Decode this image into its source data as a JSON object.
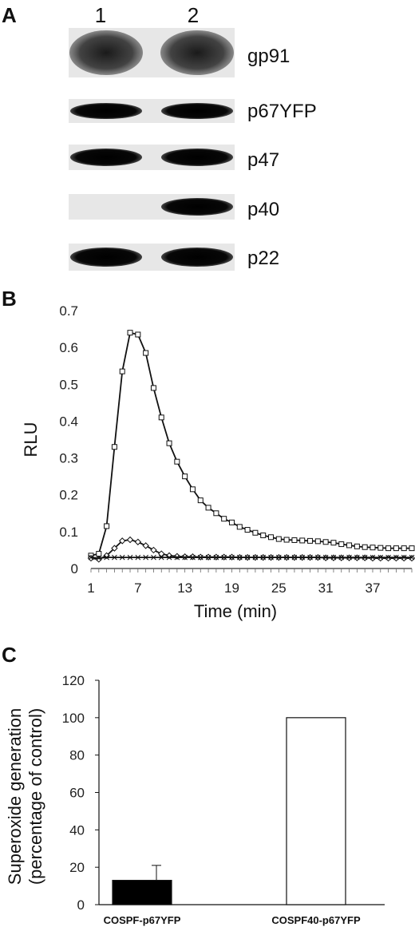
{
  "panels": {
    "a": {
      "letter": "A",
      "lanes": [
        "1",
        "2"
      ],
      "blots": [
        {
          "label": "gp91",
          "lane_intensity": [
            1,
            1
          ],
          "style": "smear"
        },
        {
          "label": "p67YFP",
          "lane_intensity": [
            1,
            1
          ],
          "style": "band"
        },
        {
          "label": "p47",
          "lane_intensity": [
            1,
            1
          ],
          "style": "band"
        },
        {
          "label": "p40",
          "lane_intensity": [
            0,
            1
          ],
          "style": "band"
        },
        {
          "label": "p22",
          "lane_intensity": [
            1,
            1
          ],
          "style": "band"
        }
      ]
    },
    "b": {
      "letter": "B"
    },
    "c": {
      "letter": "C"
    }
  },
  "chart_data": [
    {
      "type": "line",
      "panel": "B",
      "xlabel": "Time (min)",
      "ylabel": "RLU",
      "xlim": [
        1,
        42
      ],
      "ylim": [
        0,
        0.7
      ],
      "x_ticks": [
        "1",
        "7",
        "13",
        "19",
        "25",
        "31",
        "37"
      ],
      "y_ticks": [
        "0",
        "0.1",
        "0.2",
        "0.3",
        "0.4",
        "0.5",
        "0.6",
        "0.7"
      ],
      "x": [
        1,
        2,
        3,
        4,
        5,
        6,
        7,
        8,
        9,
        10,
        11,
        12,
        13,
        14,
        15,
        16,
        17,
        18,
        19,
        20,
        21,
        22,
        23,
        24,
        25,
        26,
        27,
        28,
        29,
        30,
        31,
        32,
        33,
        34,
        35,
        36,
        37,
        38,
        39,
        40,
        41,
        42
      ],
      "series": [
        {
          "marker": "square",
          "values": [
            0.035,
            0.04,
            0.115,
            0.33,
            0.535,
            0.64,
            0.635,
            0.585,
            0.49,
            0.41,
            0.34,
            0.29,
            0.25,
            0.215,
            0.185,
            0.165,
            0.15,
            0.135,
            0.125,
            0.113,
            0.105,
            0.097,
            0.09,
            0.085,
            0.08,
            0.078,
            0.077,
            0.076,
            0.075,
            0.074,
            0.072,
            0.07,
            0.066,
            0.063,
            0.06,
            0.058,
            0.057,
            0.056,
            0.055,
            0.055,
            0.055,
            0.055
          ]
        },
        {
          "marker": "diamond",
          "values": [
            0.028,
            0.025,
            0.035,
            0.055,
            0.075,
            0.078,
            0.072,
            0.062,
            0.05,
            0.04,
            0.035,
            0.033,
            0.032,
            0.032,
            0.031,
            0.031,
            0.031,
            0.031,
            0.031,
            0.03,
            0.03,
            0.03,
            0.03,
            0.03,
            0.03,
            0.03,
            0.03,
            0.03,
            0.03,
            0.03,
            0.029,
            0.029,
            0.029,
            0.029,
            0.029,
            0.029,
            0.028,
            0.028,
            0.028,
            0.028,
            0.028,
            0.028
          ]
        },
        {
          "marker": "x",
          "values": [
            0.03,
            0.028,
            0.03,
            0.03,
            0.03,
            0.03,
            0.03,
            0.03,
            0.03,
            0.03,
            0.03,
            0.03,
            0.03,
            0.03,
            0.03,
            0.03,
            0.03,
            0.03,
            0.03,
            0.03,
            0.03,
            0.03,
            0.03,
            0.03,
            0.03,
            0.03,
            0.03,
            0.03,
            0.03,
            0.03,
            0.03,
            0.03,
            0.03,
            0.03,
            0.03,
            0.03,
            0.03,
            0.03,
            0.03,
            0.03,
            0.03,
            0.03
          ]
        }
      ]
    },
    {
      "type": "bar",
      "panel": "C",
      "ylabel_line1": "Superoxide generation",
      "ylabel_line2": "(percentage of control)",
      "ylim": [
        0,
        120
      ],
      "y_ticks": [
        "0",
        "20",
        "40",
        "60",
        "80",
        "100",
        "120"
      ],
      "categories": [
        "COSPF-p67YFP",
        "COSPF40-p67YFP"
      ],
      "values": [
        13,
        100
      ],
      "errors": [
        8,
        0
      ],
      "fills": [
        "#000000",
        "#ffffff"
      ]
    }
  ]
}
